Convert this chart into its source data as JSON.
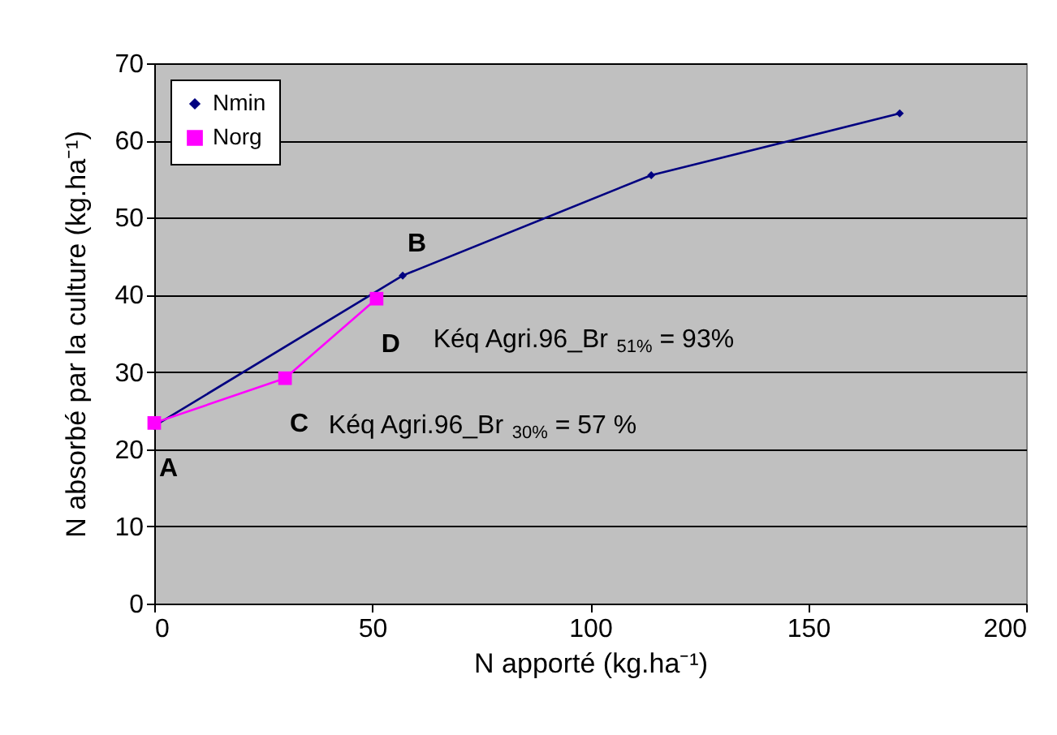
{
  "chart_data": {
    "type": "line",
    "xlabel": "N apporté (kg.ha⁻¹)",
    "ylabel": "N absorbé par la culture (kg.ha⁻¹)",
    "xlim": [
      0,
      200
    ],
    "xticks": [
      0,
      50,
      100,
      150,
      200
    ],
    "ylim": [
      0,
      70
    ],
    "yticks": [
      0,
      10,
      20,
      30,
      40,
      50,
      60,
      70
    ],
    "grid": "y",
    "legend": "top left",
    "series": [
      {
        "name": "Nmin",
        "color": "#000080",
        "marker": "diamond",
        "x": [
          0,
          57,
          114,
          171
        ],
        "values": [
          23,
          42.5,
          55.5,
          63.5
        ]
      },
      {
        "name": "Norg",
        "color": "#ff00ff",
        "marker": "square",
        "x": [
          0,
          30,
          51
        ],
        "values": [
          23.4,
          29.2,
          39.5
        ]
      }
    ],
    "annotations": [
      {
        "text": "A",
        "x": 0,
        "y": 23.4
      },
      {
        "text": "B",
        "x": 57,
        "y": 42.5
      },
      {
        "text": "C",
        "x": 30,
        "y": 29.2
      },
      {
        "text": "D",
        "x": 51,
        "y": 39.5
      },
      "Kéq Agri.96_Br $_{51%}$ = 93%",
      "Kéq Agri.96_Br $_{30%}$ = 57 %"
    ]
  }
}
